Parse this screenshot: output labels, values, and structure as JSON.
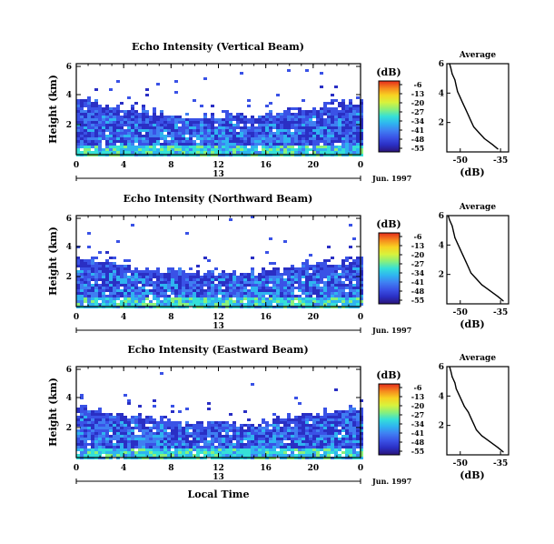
{
  "colors": {
    "colorbar": [
      "#2b1478",
      "#2a2fc4",
      "#3a52e6",
      "#3f7ff2",
      "#2fb4f0",
      "#35e0d8",
      "#8af07a",
      "#d9f23c",
      "#f7d322",
      "#f6881d",
      "#e52b1c"
    ]
  },
  "chart_data": [
    {
      "type": "heatmap",
      "title": "Echo Intensity (Vertical Beam)",
      "ylabel": "Height (km)",
      "ylim": [
        0,
        5
      ],
      "yticks": [
        "2",
        "4",
        "6"
      ],
      "xlim": [
        0,
        24
      ],
      "xticks": [
        "0",
        "4",
        "8",
        "12",
        "16",
        "20",
        "0"
      ],
      "date_label": "13",
      "month_label": "Jun. 1997",
      "colorbar": {
        "label": "(dB)",
        "ticks": [
          "-6",
          "-13",
          "-20",
          "-27",
          "-34",
          "-41",
          "-48",
          "-55"
        ]
      },
      "profile": {
        "title": "Average",
        "xlabel": "(dB)",
        "xticks": [
          "-50",
          "-35"
        ],
        "xlim": [
          -55,
          -32
        ],
        "yticks": [
          "2",
          "4",
          "6"
        ],
        "ylim": [
          0,
          6
        ],
        "x": [
          -36,
          -38,
          -41,
          -43,
          -45,
          -46,
          -47,
          -48,
          -49,
          -50,
          -51,
          -51.5,
          -52,
          -53,
          -53.5,
          -54
        ],
        "y": [
          0.2,
          0.5,
          0.9,
          1.3,
          1.7,
          2.1,
          2.5,
          2.9,
          3.3,
          3.7,
          4.1,
          4.5,
          4.9,
          5.3,
          5.7,
          6.0
        ]
      }
    },
    {
      "type": "heatmap",
      "title": "Echo Intensity (Northward Beam)",
      "ylabel": "Height (km)",
      "ylim": [
        0,
        5
      ],
      "yticks": [
        "2",
        "4",
        "6"
      ],
      "xlim": [
        0,
        24
      ],
      "xticks": [
        "0",
        "4",
        "8",
        "12",
        "16",
        "20",
        "0"
      ],
      "date_label": "13",
      "month_label": "Jun. 1997",
      "colorbar": {
        "label": "(dB)",
        "ticks": [
          "-6",
          "-13",
          "-20",
          "-27",
          "-34",
          "-41",
          "-48",
          "-55"
        ]
      },
      "profile": {
        "title": "Average",
        "xlabel": "(dB)",
        "xticks": [
          "-50",
          "-35"
        ],
        "xlim": [
          -55,
          -32
        ],
        "yticks": [
          "2",
          "4",
          "6"
        ],
        "ylim": [
          0,
          6
        ],
        "x": [
          -34,
          -36,
          -39,
          -42,
          -44,
          -46,
          -47,
          -48,
          -49,
          -50,
          -51,
          -52,
          -52.5,
          -53,
          -54,
          -54.5
        ],
        "y": [
          0.2,
          0.5,
          0.9,
          1.3,
          1.7,
          2.1,
          2.5,
          2.9,
          3.3,
          3.7,
          4.1,
          4.5,
          4.9,
          5.3,
          5.7,
          6.0
        ]
      }
    },
    {
      "type": "heatmap",
      "title": "Echo Intensity (Eastward Beam)",
      "ylabel": "Height (km)",
      "ylim": [
        0,
        5
      ],
      "yticks": [
        "2",
        "4",
        "6"
      ],
      "xlim": [
        0,
        24
      ],
      "xticks": [
        "0",
        "4",
        "8",
        "12",
        "16",
        "20",
        "0"
      ],
      "date_label": "13",
      "month_label": "Jun. 1997",
      "xlabel": "Local Time",
      "colorbar": {
        "label": "(dB)",
        "ticks": [
          "-6",
          "-13",
          "-20",
          "-27",
          "-34",
          "-41",
          "-48",
          "-55"
        ]
      },
      "profile": {
        "title": "Average",
        "xlabel": "(dB)",
        "xticks": [
          "-50",
          "-35"
        ],
        "xlim": [
          -55,
          -32
        ],
        "yticks": [
          "2",
          "4",
          "6"
        ],
        "ylim": [
          0,
          6
        ],
        "x": [
          -34,
          -36,
          -39,
          -42,
          -44,
          -45,
          -46,
          -47,
          -48.5,
          -49.5,
          -50.5,
          -51.5,
          -52,
          -53,
          -53.5,
          -54
        ],
        "y": [
          0.2,
          0.5,
          0.9,
          1.3,
          1.7,
          2.1,
          2.5,
          2.9,
          3.3,
          3.7,
          4.1,
          4.5,
          4.9,
          5.3,
          5.7,
          6.0
        ]
      }
    }
  ]
}
